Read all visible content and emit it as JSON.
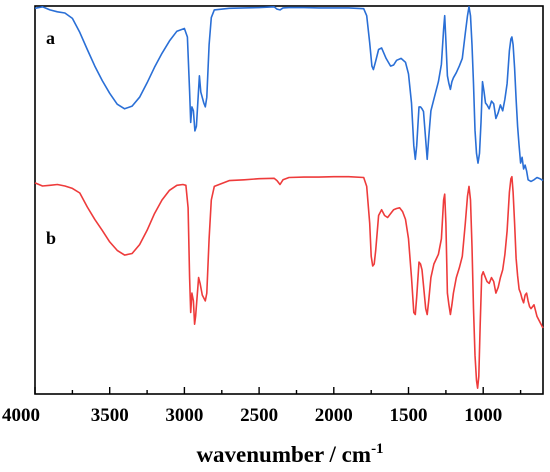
{
  "chart_data": {
    "type": "line",
    "xlabel": "wavenumber / cm",
    "xlabel_sup": "-1",
    "x_ticks": [
      4000,
      3500,
      3000,
      2500,
      2000,
      1500,
      1000
    ],
    "x_tick_labels": [
      "4000",
      "3500",
      "3000",
      "2500",
      "2000",
      "1500",
      "1000"
    ],
    "xlim": [
      4000,
      600
    ],
    "x_reversed": true,
    "ylim": [
      0,
      100
    ],
    "y_axis_labels": false,
    "grid": false,
    "legend": "none",
    "series": [
      {
        "name": "a",
        "color": "#2a6fd6",
        "points": [
          [
            4000,
            99.4
          ],
          [
            3950,
            99.8
          ],
          [
            3900,
            99.0
          ],
          [
            3850,
            98.5
          ],
          [
            3800,
            98.2
          ],
          [
            3750,
            96.8
          ],
          [
            3700,
            93.2
          ],
          [
            3650,
            88.8
          ],
          [
            3600,
            84.5
          ],
          [
            3550,
            80.8
          ],
          [
            3500,
            77.5
          ],
          [
            3450,
            74.7
          ],
          [
            3400,
            73.5
          ],
          [
            3350,
            74.2
          ],
          [
            3300,
            76.5
          ],
          [
            3250,
            80.2
          ],
          [
            3200,
            84.2
          ],
          [
            3150,
            87.8
          ],
          [
            3100,
            91.0
          ],
          [
            3050,
            93.5
          ],
          [
            3000,
            94.2
          ],
          [
            2980,
            92.0
          ],
          [
            2965,
            78.0
          ],
          [
            2958,
            70.0
          ],
          [
            2950,
            74.0
          ],
          [
            2940,
            73.0
          ],
          [
            2930,
            67.8
          ],
          [
            2920,
            69.0
          ],
          [
            2900,
            82.0
          ],
          [
            2890,
            77.8
          ],
          [
            2870,
            75.0
          ],
          [
            2860,
            74.0
          ],
          [
            2850,
            76.5
          ],
          [
            2835,
            90.0
          ],
          [
            2820,
            97.0
          ],
          [
            2800,
            99.0
          ],
          [
            2700,
            99.4
          ],
          [
            2600,
            99.5
          ],
          [
            2500,
            99.6
          ],
          [
            2400,
            99.8
          ],
          [
            2380,
            99.2
          ],
          [
            2360,
            99.0
          ],
          [
            2340,
            99.5
          ],
          [
            2300,
            99.6
          ],
          [
            2200,
            99.6
          ],
          [
            2100,
            99.5
          ],
          [
            2000,
            99.5
          ],
          [
            1900,
            99.5
          ],
          [
            1800,
            99.3
          ],
          [
            1780,
            97.5
          ],
          [
            1760,
            90.5
          ],
          [
            1745,
            84.5
          ],
          [
            1735,
            83.6
          ],
          [
            1720,
            85.8
          ],
          [
            1700,
            88.8
          ],
          [
            1680,
            89.2
          ],
          [
            1650,
            86.5
          ],
          [
            1620,
            84.5
          ],
          [
            1600,
            84.8
          ],
          [
            1580,
            86.0
          ],
          [
            1550,
            86.5
          ],
          [
            1520,
            85.5
          ],
          [
            1500,
            82.5
          ],
          [
            1480,
            75.0
          ],
          [
            1465,
            64.0
          ],
          [
            1455,
            60.5
          ],
          [
            1445,
            64.0
          ],
          [
            1430,
            74.0
          ],
          [
            1420,
            74.0
          ],
          [
            1410,
            73.5
          ],
          [
            1400,
            72.8
          ],
          [
            1385,
            65.5
          ],
          [
            1375,
            60.5
          ],
          [
            1365,
            66.0
          ],
          [
            1350,
            73.0
          ],
          [
            1330,
            76.0
          ],
          [
            1300,
            80.5
          ],
          [
            1280,
            85.0
          ],
          [
            1265,
            94.0
          ],
          [
            1258,
            97.5
          ],
          [
            1250,
            91.0
          ],
          [
            1240,
            82.0
          ],
          [
            1230,
            80.0
          ],
          [
            1220,
            78.5
          ],
          [
            1210,
            80.5
          ],
          [
            1200,
            81.5
          ],
          [
            1180,
            82.8
          ],
          [
            1160,
            84.5
          ],
          [
            1140,
            86.5
          ],
          [
            1120,
            93.0
          ],
          [
            1105,
            97.5
          ],
          [
            1095,
            99.8
          ],
          [
            1085,
            97.5
          ],
          [
            1075,
            90.0
          ],
          [
            1065,
            80.0
          ],
          [
            1055,
            68.0
          ],
          [
            1045,
            62.0
          ],
          [
            1035,
            59.5
          ],
          [
            1025,
            62.0
          ],
          [
            1015,
            70.0
          ],
          [
            1005,
            80.5
          ],
          [
            995,
            78.0
          ],
          [
            985,
            75.0
          ],
          [
            975,
            74.5
          ],
          [
            960,
            73.5
          ],
          [
            945,
            75.5
          ],
          [
            930,
            74.8
          ],
          [
            915,
            71.0
          ],
          [
            900,
            72.5
          ],
          [
            885,
            74.5
          ],
          [
            870,
            73.0
          ],
          [
            855,
            76.0
          ],
          [
            840,
            80.0
          ],
          [
            825,
            88.5
          ],
          [
            815,
            91.5
          ],
          [
            808,
            92.0
          ],
          [
            800,
            90.0
          ],
          [
            790,
            84.0
          ],
          [
            780,
            76.0
          ],
          [
            770,
            69.0
          ],
          [
            760,
            64.0
          ],
          [
            750,
            59.5
          ],
          [
            740,
            61.0
          ],
          [
            730,
            58.0
          ],
          [
            720,
            59.0
          ],
          [
            710,
            57.5
          ],
          [
            700,
            55.2
          ],
          [
            680,
            54.8
          ],
          [
            660,
            55.2
          ],
          [
            640,
            55.8
          ],
          [
            620,
            55.5
          ],
          [
            600,
            55.0
          ]
        ]
      },
      {
        "name": "b",
        "color": "#ee3b3b",
        "points": [
          [
            4000,
            54.4
          ],
          [
            3950,
            53.6
          ],
          [
            3900,
            53.8
          ],
          [
            3850,
            54.0
          ],
          [
            3800,
            53.6
          ],
          [
            3750,
            53.0
          ],
          [
            3700,
            51.8
          ],
          [
            3650,
            48.2
          ],
          [
            3600,
            45.0
          ],
          [
            3550,
            42.2
          ],
          [
            3500,
            39.2
          ],
          [
            3450,
            37.0
          ],
          [
            3400,
            35.8
          ],
          [
            3350,
            36.2
          ],
          [
            3300,
            38.5
          ],
          [
            3250,
            42.2
          ],
          [
            3200,
            46.5
          ],
          [
            3150,
            50.0
          ],
          [
            3100,
            52.5
          ],
          [
            3050,
            53.8
          ],
          [
            3010,
            54.0
          ],
          [
            2990,
            53.8
          ],
          [
            2975,
            48.0
          ],
          [
            2965,
            30.0
          ],
          [
            2958,
            21.0
          ],
          [
            2950,
            26.0
          ],
          [
            2940,
            24.0
          ],
          [
            2932,
            18.0
          ],
          [
            2925,
            20.0
          ],
          [
            2905,
            30.0
          ],
          [
            2895,
            28.5
          ],
          [
            2880,
            25.5
          ],
          [
            2860,
            24.0
          ],
          [
            2850,
            26.0
          ],
          [
            2835,
            40.0
          ],
          [
            2820,
            50.0
          ],
          [
            2800,
            53.5
          ],
          [
            2700,
            55.0
          ],
          [
            2600,
            55.2
          ],
          [
            2500,
            55.5
          ],
          [
            2400,
            55.6
          ],
          [
            2380,
            55.0
          ],
          [
            2360,
            54.0
          ],
          [
            2340,
            55.2
          ],
          [
            2300,
            55.8
          ],
          [
            2200,
            55.9
          ],
          [
            2100,
            55.9
          ],
          [
            2000,
            56.0
          ],
          [
            1900,
            56.0
          ],
          [
            1800,
            55.8
          ],
          [
            1780,
            53.5
          ],
          [
            1760,
            44.0
          ],
          [
            1750,
            35.5
          ],
          [
            1740,
            33.0
          ],
          [
            1730,
            33.5
          ],
          [
            1720,
            37.0
          ],
          [
            1700,
            46.0
          ],
          [
            1680,
            47.5
          ],
          [
            1660,
            46.0
          ],
          [
            1640,
            45.5
          ],
          [
            1620,
            46.5
          ],
          [
            1600,
            47.5
          ],
          [
            1580,
            47.8
          ],
          [
            1560,
            48.0
          ],
          [
            1540,
            47.0
          ],
          [
            1520,
            45.0
          ],
          [
            1500,
            40.0
          ],
          [
            1480,
            30.0
          ],
          [
            1465,
            21.0
          ],
          [
            1455,
            20.5
          ],
          [
            1445,
            25.0
          ],
          [
            1430,
            34.0
          ],
          [
            1420,
            33.5
          ],
          [
            1410,
            32.0
          ],
          [
            1400,
            28.0
          ],
          [
            1385,
            22.0
          ],
          [
            1375,
            20.5
          ],
          [
            1365,
            24.0
          ],
          [
            1350,
            30.0
          ],
          [
            1330,
            33.5
          ],
          [
            1300,
            36.0
          ],
          [
            1280,
            40.0
          ],
          [
            1265,
            50.0
          ],
          [
            1258,
            51.5
          ],
          [
            1250,
            44.0
          ],
          [
            1240,
            26.0
          ],
          [
            1230,
            23.0
          ],
          [
            1220,
            20.5
          ],
          [
            1210,
            23.0
          ],
          [
            1200,
            26.0
          ],
          [
            1180,
            30.0
          ],
          [
            1160,
            32.5
          ],
          [
            1140,
            35.5
          ],
          [
            1120,
            44.0
          ],
          [
            1105,
            51.0
          ],
          [
            1095,
            53.5
          ],
          [
            1085,
            50.0
          ],
          [
            1075,
            38.0
          ],
          [
            1065,
            22.0
          ],
          [
            1055,
            10.0
          ],
          [
            1045,
            3.5
          ],
          [
            1038,
            1.5
          ],
          [
            1030,
            4.5
          ],
          [
            1020,
            18.0
          ],
          [
            1010,
            30.5
          ],
          [
            1000,
            31.5
          ],
          [
            990,
            30.5
          ],
          [
            975,
            29.0
          ],
          [
            960,
            28.5
          ],
          [
            945,
            30.0
          ],
          [
            930,
            29.0
          ],
          [
            915,
            26.0
          ],
          [
            900,
            27.5
          ],
          [
            885,
            30.0
          ],
          [
            870,
            32.0
          ],
          [
            855,
            36.0
          ],
          [
            840,
            42.0
          ],
          [
            825,
            52.0
          ],
          [
            815,
            55.5
          ],
          [
            808,
            56.0
          ],
          [
            800,
            52.0
          ],
          [
            790,
            44.0
          ],
          [
            780,
            35.0
          ],
          [
            770,
            30.5
          ],
          [
            760,
            27.0
          ],
          [
            750,
            26.0
          ],
          [
            740,
            24.5
          ],
          [
            730,
            23.5
          ],
          [
            720,
            25.5
          ],
          [
            710,
            26.0
          ],
          [
            700,
            24.0
          ],
          [
            690,
            22.5
          ],
          [
            680,
            22.0
          ],
          [
            670,
            22.5
          ],
          [
            660,
            23.0
          ],
          [
            650,
            21.5
          ],
          [
            640,
            20.0
          ],
          [
            620,
            18.5
          ],
          [
            600,
            17.0
          ]
        ]
      }
    ]
  }
}
